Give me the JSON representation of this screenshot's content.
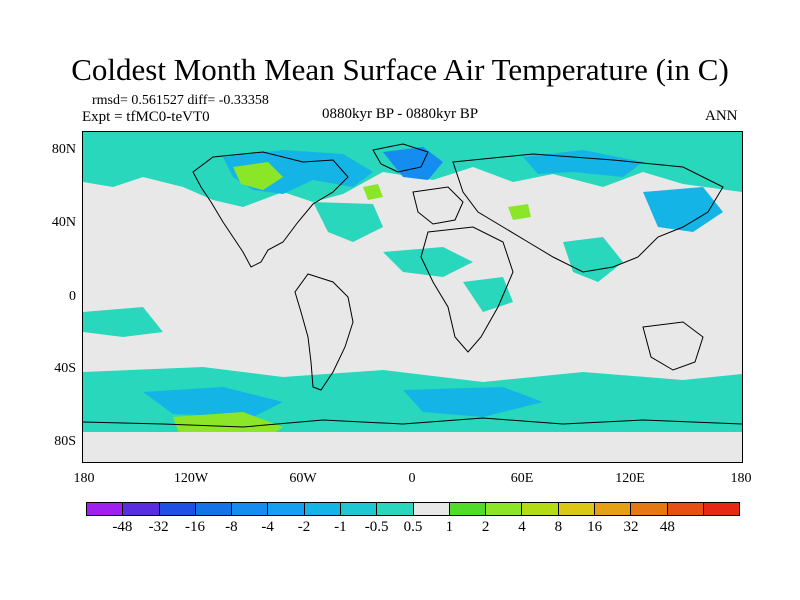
{
  "title": "Coldest Month Mean Surface Air Temperature (in C)",
  "stats": "rmsd= 0.561527 diff= -0.33358",
  "experiment": "Expt = tfMC0-teVT0",
  "period": "0880kyr BP - 0880kyr BP",
  "season": "ANN",
  "lat_labels": [
    "80N",
    "40N",
    "0",
    "40S",
    "80S"
  ],
  "lon_labels": [
    "180",
    "120W",
    "60W",
    "0",
    "60E",
    "120E",
    "180"
  ],
  "colorbar": {
    "labels": [
      "-48",
      "-32",
      "-16",
      "-8",
      "-4",
      "-2",
      "-1",
      "-0.5",
      "0.5",
      "1",
      "2",
      "4",
      "8",
      "16",
      "32",
      "48"
    ],
    "colors": [
      "#a020f0",
      "#5a2ee0",
      "#1e50e6",
      "#1473e6",
      "#148cf0",
      "#14a0f0",
      "#14b4e6",
      "#1ec8d2",
      "#28d7bc",
      "#e8e8e8",
      "#50dc28",
      "#8ce628",
      "#b4dc14",
      "#dcc814",
      "#e6a014",
      "#e67814",
      "#e65014",
      "#e62814"
    ]
  },
  "map_colors": {
    "ocean": "#e8e8e8",
    "light_cyan": "#28d7bc",
    "cyan": "#14b4e6",
    "blue": "#148cf0",
    "green": "#8ce628",
    "coast": "#000000"
  }
}
